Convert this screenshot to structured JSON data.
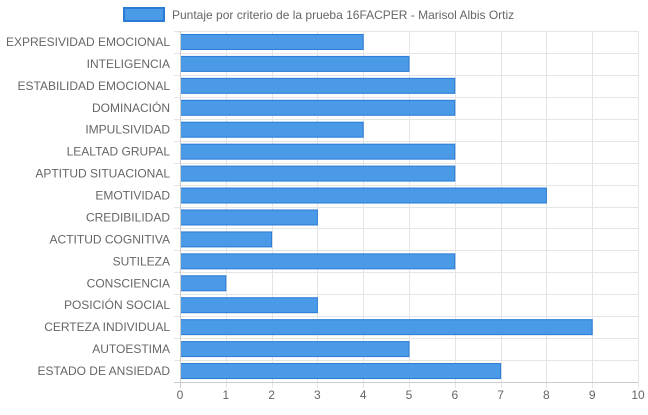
{
  "chart_data": {
    "type": "bar",
    "orientation": "horizontal",
    "title": "",
    "xlabel": "",
    "ylabel": "",
    "xlim": [
      0,
      10
    ],
    "x_ticks": [
      0,
      1,
      2,
      3,
      4,
      5,
      6,
      7,
      8,
      9,
      10
    ],
    "grid": true,
    "legend_position": "top-center",
    "categories": [
      "EXPRESIVIDAD EMOCIONAL",
      "INTELIGENCIA",
      "ESTABILIDAD EMOCIONAL",
      "DOMINACIÓN",
      "IMPULSIVIDAD",
      "LEALTAD GRUPAL",
      "APTITUD SITUACIONAL",
      "EMOTIVIDAD",
      "CREDIBILIDAD",
      "ACTITUD COGNITIVA",
      "SUTILEZA",
      "CONSCIENCIA",
      "POSICIÓN SOCIAL",
      "CERTEZA INDIVIDUAL",
      "AUTOESTIMA",
      "ESTADO DE ANSIEDAD"
    ],
    "series": [
      {
        "name": "Puntaje por criterio de la prueba 16FACPER - Marisol Albis Ortiz",
        "values": [
          4,
          5,
          6,
          6,
          4,
          6,
          6,
          8,
          3,
          2,
          6,
          1,
          3,
          9,
          5,
          7
        ],
        "color": "#4a9ae8",
        "border_color": "#2a7bd5"
      }
    ]
  },
  "colors": {
    "bar_fill": "#4a9ae8",
    "bar_border": "#2a7bd5",
    "grid": "#e5e5e5",
    "axis": "#cccccc",
    "text": "#666666"
  }
}
